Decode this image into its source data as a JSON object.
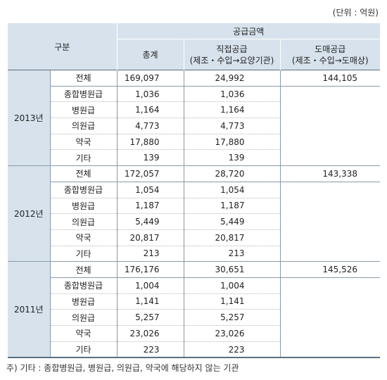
{
  "unit_label": "(단위 : 억원)",
  "headers": {
    "category": "구분",
    "supply_amount": "공급금액",
    "total": "총계",
    "direct_line1": "직접공급",
    "direct_line2": "(제조・수입→요양기관)",
    "wholesale_line1": "도매공급",
    "wholesale_line2": "(제조・수입→도매상)"
  },
  "groups": [
    {
      "year": "2013년",
      "rows": [
        {
          "label": "전체",
          "total": "169,097",
          "direct": "24,992",
          "wholesale": "144,105"
        },
        {
          "label": "종합병원급",
          "total": "1,036",
          "direct": "1,036",
          "wholesale": ""
        },
        {
          "label": "병원급",
          "total": "1,164",
          "direct": "1,164",
          "wholesale": ""
        },
        {
          "label": "의원급",
          "total": "4,773",
          "direct": "4,773",
          "wholesale": ""
        },
        {
          "label": "약국",
          "total": "17,880",
          "direct": "17,880",
          "wholesale": ""
        },
        {
          "label": "기타",
          "total": "139",
          "direct": "139",
          "wholesale": ""
        }
      ]
    },
    {
      "year": "2012년",
      "rows": [
        {
          "label": "전체",
          "total": "172,057",
          "direct": "28,720",
          "wholesale": "143,338"
        },
        {
          "label": "종합병원급",
          "total": "1,054",
          "direct": "1,054",
          "wholesale": ""
        },
        {
          "label": "병원급",
          "total": "1,187",
          "direct": "1,187",
          "wholesale": ""
        },
        {
          "label": "의원급",
          "total": "5,449",
          "direct": "5,449",
          "wholesale": ""
        },
        {
          "label": "약국",
          "total": "20,817",
          "direct": "20,817",
          "wholesale": ""
        },
        {
          "label": "기타",
          "total": "213",
          "direct": "213",
          "wholesale": ""
        }
      ]
    },
    {
      "year": "2011년",
      "rows": [
        {
          "label": "전체",
          "total": "176,176",
          "direct": "30,651",
          "wholesale": "145,526"
        },
        {
          "label": "종합병원급",
          "total": "1,004",
          "direct": "1,004",
          "wholesale": ""
        },
        {
          "label": "병원급",
          "total": "1,141",
          "direct": "1,141",
          "wholesale": ""
        },
        {
          "label": "의원급",
          "total": "5,257",
          "direct": "5,257",
          "wholesale": ""
        },
        {
          "label": "약국",
          "total": "23,026",
          "direct": "23,026",
          "wholesale": ""
        },
        {
          "label": "기타",
          "total": "223",
          "direct": "223",
          "wholesale": ""
        }
      ]
    }
  ],
  "footnote": "주) 기타 : 종합병원급, 병원급, 의원급, 약국에 해당하지 않는 기관"
}
